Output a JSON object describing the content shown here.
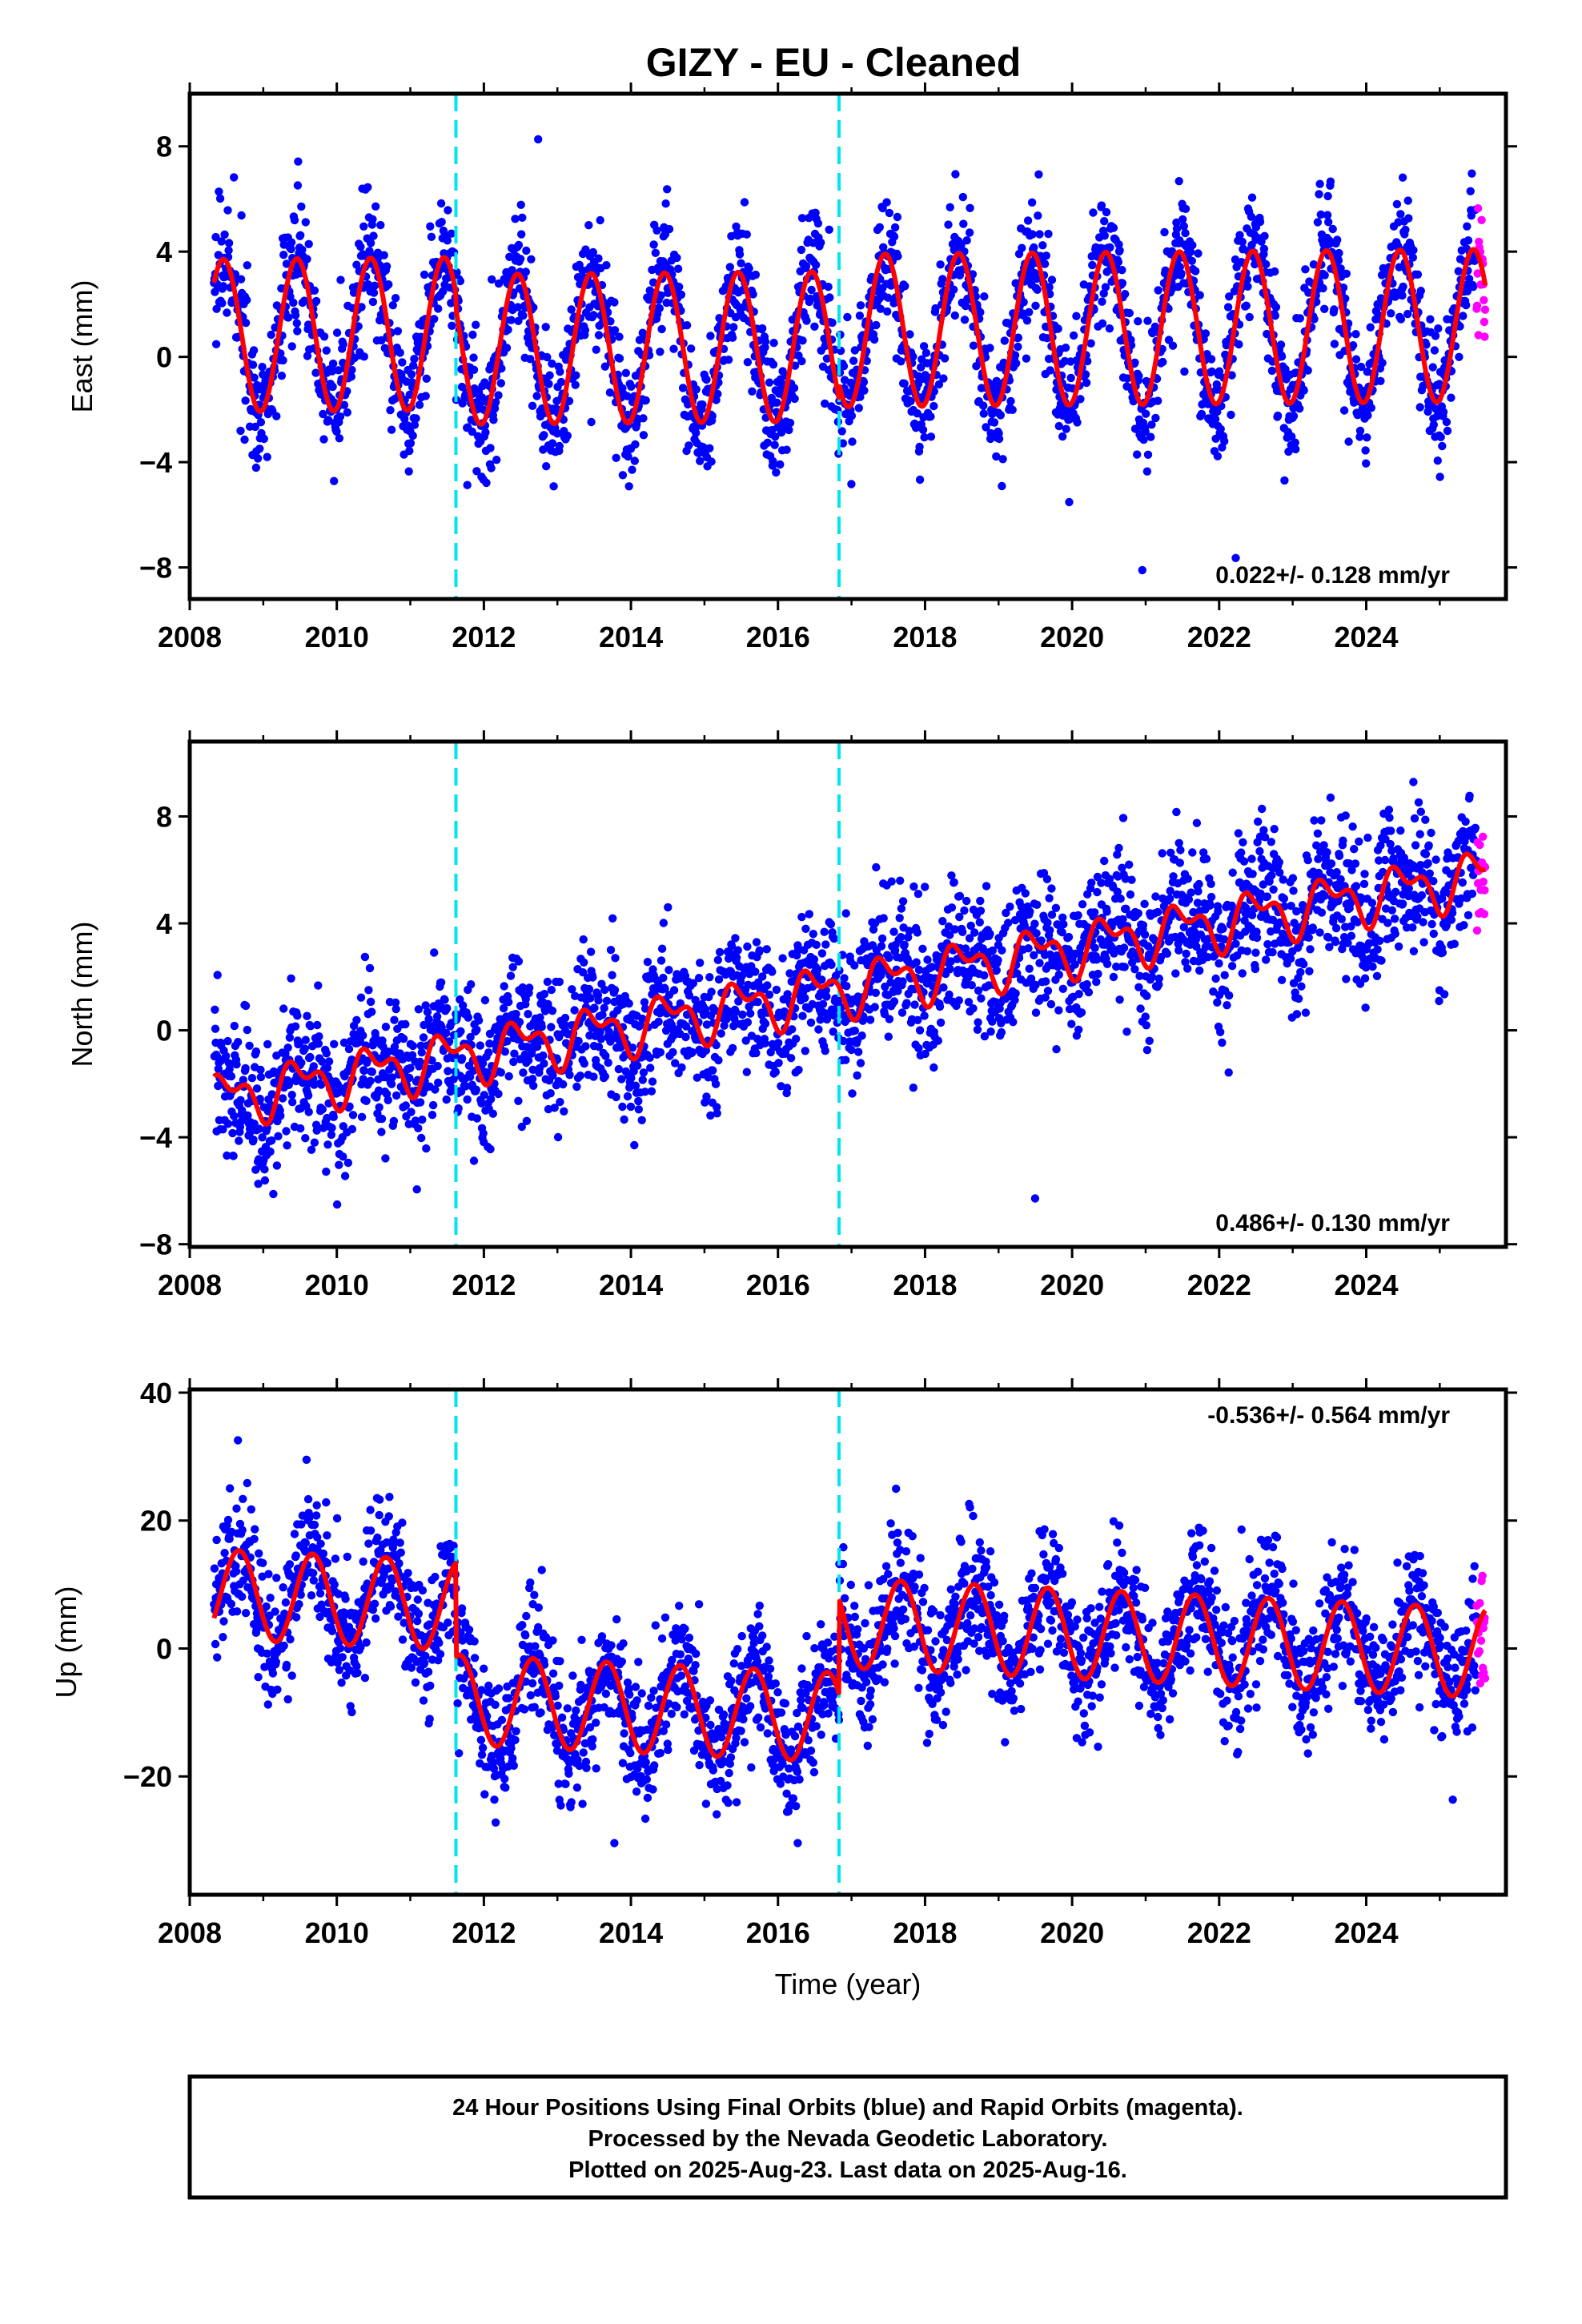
{
  "title": "GIZY  - EU - Cleaned",
  "footer": {
    "line1": "24 Hour Positions Using Final Orbits (blue) and Rapid Orbits (magenta).",
    "line2": "Processed by the Nevada Geodetic Laboratory.",
    "line3": "Plotted on 2025-Aug-23. Last data on 2025-Aug-16."
  },
  "colors": {
    "final_orbits": "#0000ff",
    "rapid_orbits": "#ff00ff",
    "model_fit": "#ff0000",
    "offset_line": "#00e5ee"
  },
  "chart_data": [
    {
      "type": "scatter",
      "panel": "east",
      "ylabel": "East (mm)",
      "xlim": [
        2008.0,
        2025.9
      ],
      "ylim": [
        -9.2,
        10.0
      ],
      "yticks": [
        -8,
        -4,
        0,
        4,
        8
      ],
      "xticks": [
        2008,
        2010,
        2012,
        2014,
        2016,
        2018,
        2020,
        2022,
        2024
      ],
      "rate_label": "0.022+/- 0.128 mm/yr",
      "offsets": [
        2011.62,
        2016.83
      ],
      "data_start": 2008.33,
      "data_end": 2025.62,
      "rapid_start": 2025.5,
      "model": {
        "mean": 1.0,
        "trend": 0.022,
        "amplitude_segments": [
          [
            2008.33,
            2011.62,
            2.9
          ],
          [
            2011.62,
            2016.83,
            2.85
          ],
          [
            2016.83,
            2025.62,
            2.9
          ]
        ],
        "offset_steps": [
          0,
          -0.6,
          0
        ],
        "annual_peak_month": 5.5
      },
      "scatter_sd": 1.2,
      "series": [
        {
          "name": "Final Orbits",
          "color": "#0000ff"
        },
        {
          "name": "Rapid Orbits",
          "color": "#ff00ff"
        },
        {
          "name": "Model",
          "color": "#ff0000"
        }
      ]
    },
    {
      "type": "scatter",
      "panel": "north",
      "ylabel": "North (mm)",
      "xlim": [
        2008.0,
        2025.9
      ],
      "ylim": [
        -8.1,
        10.8
      ],
      "yticks": [
        -8,
        -4,
        0,
        4,
        8
      ],
      "xticks": [
        2008,
        2010,
        2012,
        2014,
        2016,
        2018,
        2020,
        2022,
        2024
      ],
      "rate_label": "0.486+/- 0.130 mm/yr",
      "offsets": [
        2011.62,
        2016.83
      ],
      "data_start": 2008.33,
      "data_end": 2025.62,
      "rapid_start": 2025.5,
      "model": {
        "start_value": -2.6,
        "trend": 0.486,
        "amplitude": 0.8,
        "semiannual": 0.5
      },
      "scatter_sd": 1.3,
      "series": [
        {
          "name": "Final Orbits",
          "color": "#0000ff"
        },
        {
          "name": "Rapid Orbits",
          "color": "#ff00ff"
        },
        {
          "name": "Model",
          "color": "#ff0000"
        }
      ]
    },
    {
      "type": "scatter",
      "panel": "up",
      "ylabel": "Up (mm)",
      "xlabel": "Time (year)",
      "xlim": [
        2008.0,
        2025.9
      ],
      "ylim": [
        -38.5,
        40.5
      ],
      "yticks": [
        -20,
        0,
        20,
        40
      ],
      "xticks": [
        2008,
        2010,
        2012,
        2014,
        2016,
        2018,
        2020,
        2022,
        2024
      ],
      "rate_label": "-0.536+/- 0.564 mm/yr",
      "offsets": [
        2011.62,
        2016.83
      ],
      "data_start": 2008.33,
      "data_end": 2025.62,
      "rapid_start": 2025.5,
      "model": {
        "segments": [
          [
            2008.33,
            2011.62,
            8.5
          ],
          [
            2011.62,
            2016.83,
            -8.0
          ],
          [
            2016.83,
            2025.62,
            4.0
          ]
        ],
        "trend": -0.536,
        "amplitude": 7.0
      },
      "scatter_sd": 5.0,
      "series": [
        {
          "name": "Final Orbits",
          "color": "#0000ff"
        },
        {
          "name": "Rapid Orbits",
          "color": "#ff00ff"
        },
        {
          "name": "Model",
          "color": "#ff0000"
        }
      ]
    }
  ]
}
